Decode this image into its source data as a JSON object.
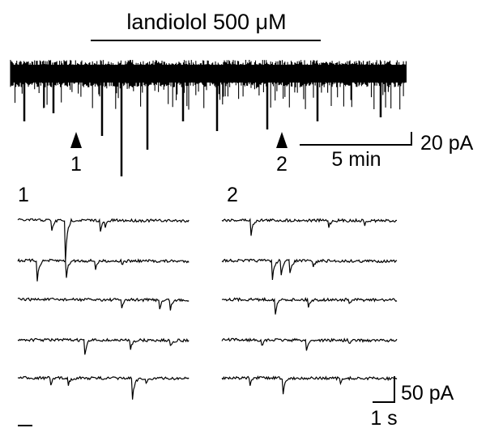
{
  "drug": {
    "label": "landiolol 500 μM"
  },
  "markers": [
    {
      "label": "1"
    },
    {
      "label": "2"
    }
  ],
  "scale_bar_top": {
    "amplitude_label": "20 pA",
    "time_label": "5 min"
  },
  "panels": [
    {
      "label": "1"
    },
    {
      "label": "2"
    }
  ],
  "scale_bar_bottom": {
    "amplitude_label": "50 pA",
    "time_label": "1 s"
  },
  "colors": {
    "trace": "#000000",
    "background": "#ffffff"
  }
}
